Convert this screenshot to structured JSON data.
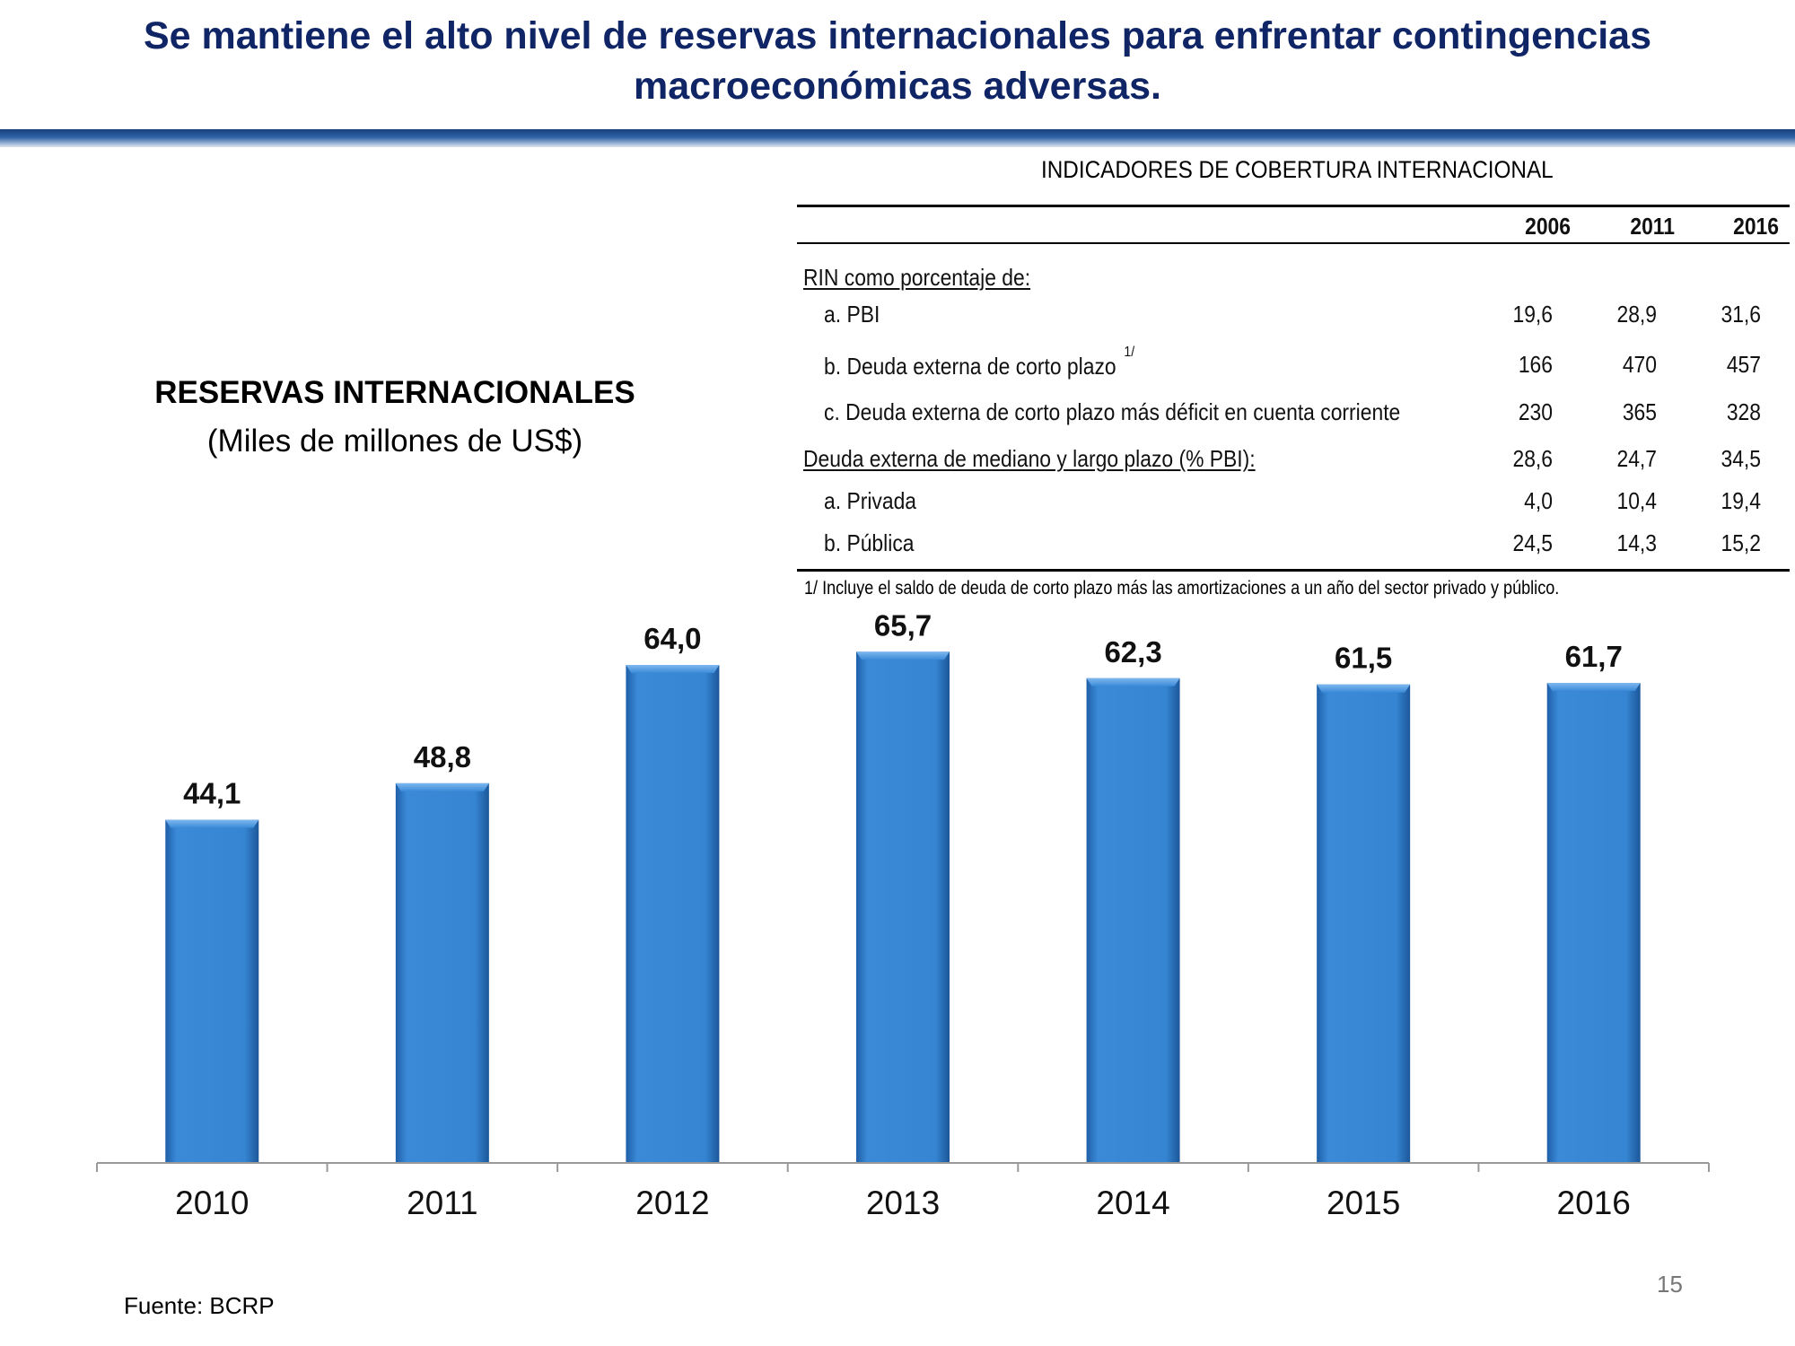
{
  "slide": {
    "title": "Se mantiene el alto nivel de reservas internacionales para enfrentar contingencias macroeconómicas adversas.",
    "source": "Fuente: BCRP",
    "page_number": "15",
    "colors": {
      "title": "#0f2566",
      "bar": "#2f7fd0",
      "rule": "#1d4f8c"
    }
  },
  "indicators": {
    "title": "INDICADORES DE COBERTURA INTERNACIONAL",
    "years": [
      "2006",
      "2011",
      "2016"
    ],
    "rows": [
      {
        "label": "RIN como porcentaje de:",
        "values": [
          "",
          "",
          ""
        ]
      },
      {
        "label": "a. PBI",
        "values": [
          "19,6",
          "28,9",
          "31,6"
        ]
      },
      {
        "label": "b. Deuda externa de corto plazo",
        "footnote": "1/",
        "values": [
          "166",
          "470",
          "457"
        ]
      },
      {
        "label": "c. Deuda externa de corto plazo más déficit en cuenta corriente",
        "values": [
          "230",
          "365",
          "328"
        ]
      },
      {
        "label": "Deuda externa de mediano y largo plazo (% PBI):",
        "values": [
          "28,6",
          "24,7",
          "34,5"
        ]
      },
      {
        "label": "a. Privada",
        "values": [
          "4,0",
          "10,4",
          "19,4"
        ]
      },
      {
        "label": "b. Pública",
        "values": [
          "24,5",
          "14,3",
          "15,2"
        ]
      }
    ],
    "note": "1/ Incluye el saldo de deuda de corto plazo más las amortizaciones a un año del sector privado y público."
  },
  "chart_data": {
    "type": "bar",
    "title": "RESERVAS INTERNACIONALES",
    "subtitle": "(Miles de millones de US$)",
    "categories": [
      "2010",
      "2011",
      "2012",
      "2013",
      "2014",
      "2015",
      "2016"
    ],
    "values": [
      44.1,
      48.8,
      64.0,
      65.7,
      62.3,
      61.5,
      61.7
    ],
    "value_labels": [
      "44,1",
      "48,8",
      "64,0",
      "65,7",
      "62,3",
      "61,5",
      "61,7"
    ],
    "ylim": [
      0,
      74.5
    ],
    "grid": false,
    "legend": "none"
  }
}
